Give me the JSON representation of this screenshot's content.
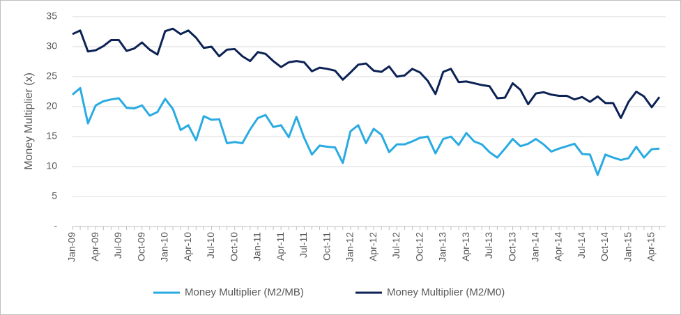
{
  "chart_data": {
    "type": "line",
    "y_label": "Money Multiplier (x)",
    "categories": [
      "Jan-09",
      null,
      null,
      "Apr-09",
      null,
      null,
      "Jul-09",
      null,
      null,
      "Oct-09",
      null,
      null,
      "Jan-10",
      null,
      null,
      "Apr-10",
      null,
      null,
      "Jul-10",
      null,
      null,
      "Oct-10",
      null,
      null,
      "Jan-11",
      null,
      null,
      "Apr-11",
      null,
      null,
      "Jul-11",
      null,
      null,
      "Oct-11",
      null,
      null,
      "Jan-12",
      null,
      null,
      "Apr-12",
      null,
      null,
      "Jul-12",
      null,
      null,
      "Oct-12",
      null,
      null,
      "Jan-13",
      null,
      null,
      "Apr-13",
      null,
      null,
      "Jul-13",
      null,
      null,
      "Oct-13",
      null,
      null,
      "Jan-14",
      null,
      null,
      "Apr-14",
      null,
      null,
      "Jul-14",
      null,
      null,
      "Oct-14",
      null,
      null,
      "Jan-15",
      null,
      null,
      "Apr-15",
      null
    ],
    "series": [
      {
        "name": "Money Multiplier (M2/MB)",
        "color": "#29abe2",
        "values": [
          22.0,
          23.1,
          17.2,
          20.2,
          20.9,
          21.2,
          21.4,
          19.8,
          19.7,
          20.2,
          18.5,
          19.1,
          21.3,
          19.6,
          16.1,
          16.9,
          14.4,
          18.4,
          17.8,
          17.9,
          13.9,
          14.1,
          13.9,
          16.2,
          18.1,
          18.6,
          16.6,
          16.9,
          14.9,
          18.3,
          14.8,
          12.0,
          13.5,
          13.3,
          13.2,
          10.6,
          15.9,
          16.9,
          13.9,
          16.3,
          15.3,
          12.4,
          13.7,
          13.7,
          14.2,
          14.8,
          15.0,
          12.2,
          14.6,
          15.0,
          13.6,
          15.6,
          14.2,
          13.7,
          12.4,
          11.5,
          13.0,
          14.6,
          13.4,
          13.8,
          14.6,
          13.7,
          12.5,
          13.0,
          13.4,
          13.8,
          12.1,
          12.0,
          8.6,
          12.0,
          11.5,
          11.1,
          11.4,
          13.3,
          11.5,
          12.9,
          13.0
        ]
      },
      {
        "name": "Money Multiplier (M2/M0)",
        "color": "#0c2254",
        "values": [
          32.1,
          32.7,
          29.2,
          29.4,
          30.1,
          31.1,
          31.1,
          29.3,
          29.7,
          30.7,
          29.5,
          28.7,
          32.6,
          33.0,
          32.1,
          32.7,
          31.5,
          29.8,
          30.0,
          28.4,
          29.5,
          29.6,
          28.4,
          27.6,
          29.1,
          28.8,
          27.6,
          26.6,
          27.4,
          27.6,
          27.4,
          25.9,
          26.5,
          26.3,
          26.0,
          24.5,
          25.7,
          27.0,
          27.2,
          26.0,
          25.8,
          26.7,
          25.0,
          25.2,
          26.3,
          25.7,
          24.3,
          22.1,
          25.8,
          26.3,
          24.1,
          24.2,
          23.9,
          23.6,
          23.4,
          21.4,
          21.5,
          23.9,
          22.8,
          20.4,
          22.2,
          22.4,
          22.0,
          21.8,
          21.8,
          21.2,
          21.6,
          20.8,
          21.7,
          20.6,
          20.6,
          18.1,
          20.8,
          22.5,
          21.7,
          19.9,
          21.6
        ]
      }
    ],
    "ylim": [
      0,
      35
    ],
    "yticks": [
      {
        "value": 0,
        "label": "-"
      },
      5,
      10,
      15,
      20,
      25,
      30,
      35
    ],
    "grid": true,
    "legend": "bottom"
  }
}
